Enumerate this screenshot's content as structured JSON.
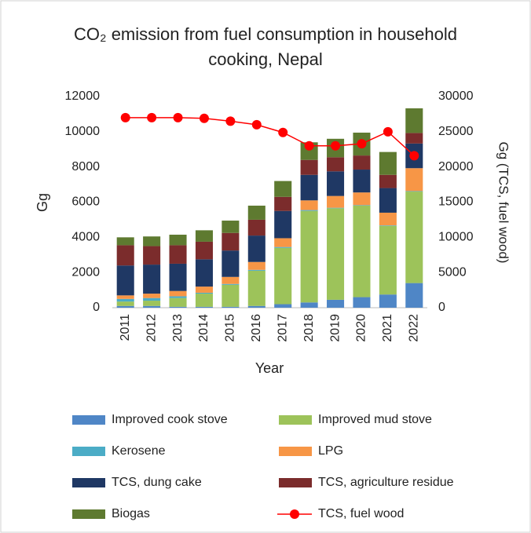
{
  "chart_data": {
    "type": "bar",
    "title": "CO₂ emission from fuel consumption in household cooking, Nepal",
    "x_label": "Year",
    "y_label": "Gg",
    "y2_label": "Gg (TCS, fuel wood)",
    "categories": [
      "2011",
      "2012",
      "2013",
      "2014",
      "2015",
      "2016",
      "2017",
      "2018",
      "2019",
      "2020",
      "2021",
      "2022"
    ],
    "stacked": true,
    "ylim": [
      0,
      12000
    ],
    "yticks": [
      0,
      2000,
      4000,
      6000,
      8000,
      10000,
      12000
    ],
    "y2lim": [
      0,
      30000
    ],
    "y2ticks": [
      0,
      5000,
      10000,
      15000,
      20000,
      25000,
      30000
    ],
    "legend": "bottom",
    "series": [
      {
        "name": "Improved cook stove",
        "color": "#4f86c6",
        "values": [
          100,
          100,
          50,
          50,
          50,
          100,
          200,
          300,
          450,
          600,
          750,
          1400
        ]
      },
      {
        "name": "Improved mud stove",
        "color": "#9dc35a",
        "values": [
          250,
          300,
          500,
          750,
          1250,
          2000,
          3200,
          5200,
          5200,
          5200,
          3900,
          5200
        ]
      },
      {
        "name": "Kerosene",
        "color": "#4bacc6",
        "values": [
          150,
          150,
          100,
          50,
          50,
          50,
          50,
          50,
          30,
          30,
          30,
          30
        ]
      },
      {
        "name": "LPG",
        "color": "#f79646",
        "values": [
          200,
          250,
          300,
          350,
          400,
          450,
          500,
          550,
          670,
          720,
          720,
          1300
        ]
      },
      {
        "name": "TCS, dung cake",
        "color": "#1f3864",
        "values": [
          1700,
          1650,
          1550,
          1550,
          1500,
          1500,
          1550,
          1450,
          1400,
          1300,
          1400,
          1400
        ]
      },
      {
        "name": "TCS, agriculture residue",
        "color": "#7b2c2c",
        "values": [
          1150,
          1050,
          1050,
          1000,
          1000,
          900,
          800,
          850,
          800,
          800,
          750,
          600
        ]
      },
      {
        "name": "Biogas",
        "color": "#5e7a30",
        "values": [
          450,
          550,
          600,
          650,
          700,
          800,
          900,
          1000,
          1050,
          1300,
          1300,
          1400
        ]
      },
      {
        "name": "TCS, fuel wood",
        "color": "#ff0000",
        "type": "line",
        "axis": "y2",
        "values": [
          27000,
          27000,
          27000,
          26900,
          26500,
          26000,
          24900,
          23000,
          23000,
          23300,
          25000,
          21600
        ]
      }
    ]
  }
}
